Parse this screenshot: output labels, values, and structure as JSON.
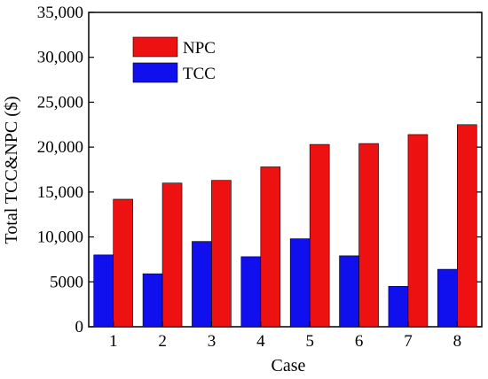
{
  "chart_data": {
    "type": "bar",
    "title": "",
    "xlabel": "Case",
    "ylabel": "Total TCC&NPC ($)",
    "categories": [
      "1",
      "2",
      "3",
      "4",
      "5",
      "6",
      "7",
      "8"
    ],
    "ylim": [
      0,
      35000
    ],
    "yticks": [
      0,
      5000,
      10000,
      15000,
      20000,
      25000,
      30000,
      35000
    ],
    "ytick_labels": [
      "0",
      "5000",
      "10,000",
      "15,000",
      "20,000",
      "25,000",
      "30,000",
      "35,000"
    ],
    "grid": false,
    "legend_position": "top-left",
    "series": [
      {
        "name": "TCC",
        "color": "#1010ee",
        "values": [
          8000,
          5900,
          9500,
          7800,
          9800,
          7900,
          4500,
          6400
        ]
      },
      {
        "name": "NPC",
        "color": "#ee1111",
        "values": [
          14200,
          16000,
          16300,
          17800,
          20300,
          20400,
          21400,
          22500
        ]
      }
    ],
    "legend_order": [
      "NPC",
      "TCC"
    ]
  }
}
